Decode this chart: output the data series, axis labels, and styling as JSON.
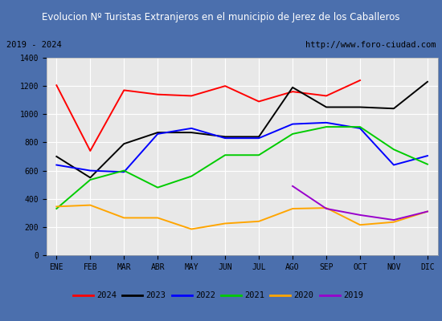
{
  "title": "Evolucion Nº Turistas Extranjeros en el municipio de Jerez de los Caballeros",
  "subtitle_left": "2019 - 2024",
  "subtitle_right": "http://www.foro-ciudad.com",
  "months": [
    "ENE",
    "FEB",
    "MAR",
    "ABR",
    "MAY",
    "JUN",
    "JUL",
    "AGO",
    "SEP",
    "OCT",
    "NOV",
    "DIC"
  ],
  "ylim": [
    0,
    1400
  ],
  "yticks": [
    0,
    200,
    400,
    600,
    800,
    1000,
    1200,
    1400
  ],
  "series": [
    {
      "year": "2024",
      "color": "#ff0000",
      "values": [
        1205,
        740,
        1170,
        1140,
        1130,
        1200,
        1090,
        1160,
        1130,
        1240,
        null,
        null
      ]
    },
    {
      "year": "2023",
      "color": "#000000",
      "values": [
        700,
        550,
        790,
        870,
        870,
        840,
        840,
        1190,
        1050,
        1050,
        1040,
        1230
      ]
    },
    {
      "year": "2022",
      "color": "#0000ff",
      "values": [
        640,
        600,
        590,
        860,
        900,
        830,
        830,
        930,
        940,
        900,
        640,
        705
      ]
    },
    {
      "year": "2021",
      "color": "#00cc00",
      "values": [
        330,
        535,
        600,
        480,
        560,
        710,
        710,
        860,
        910,
        910,
        750,
        645
      ]
    },
    {
      "year": "2020",
      "color": "#ffa500",
      "values": [
        345,
        355,
        265,
        265,
        185,
        225,
        240,
        330,
        335,
        215,
        235,
        310
      ]
    },
    {
      "year": "2019",
      "color": "#9900cc",
      "values": [
        null,
        null,
        null,
        null,
        null,
        null,
        null,
        490,
        330,
        285,
        250,
        310
      ]
    }
  ],
  "title_bgcolor": "#4b6fad",
  "title_fgcolor": "#ffffff",
  "plot_bgcolor": "#e8e8e8",
  "frame_color": "#4b6fad",
  "subtitle_bgcolor": "#f5f5f5",
  "grid_color": "#ffffff",
  "legend_border_color": "#000000"
}
